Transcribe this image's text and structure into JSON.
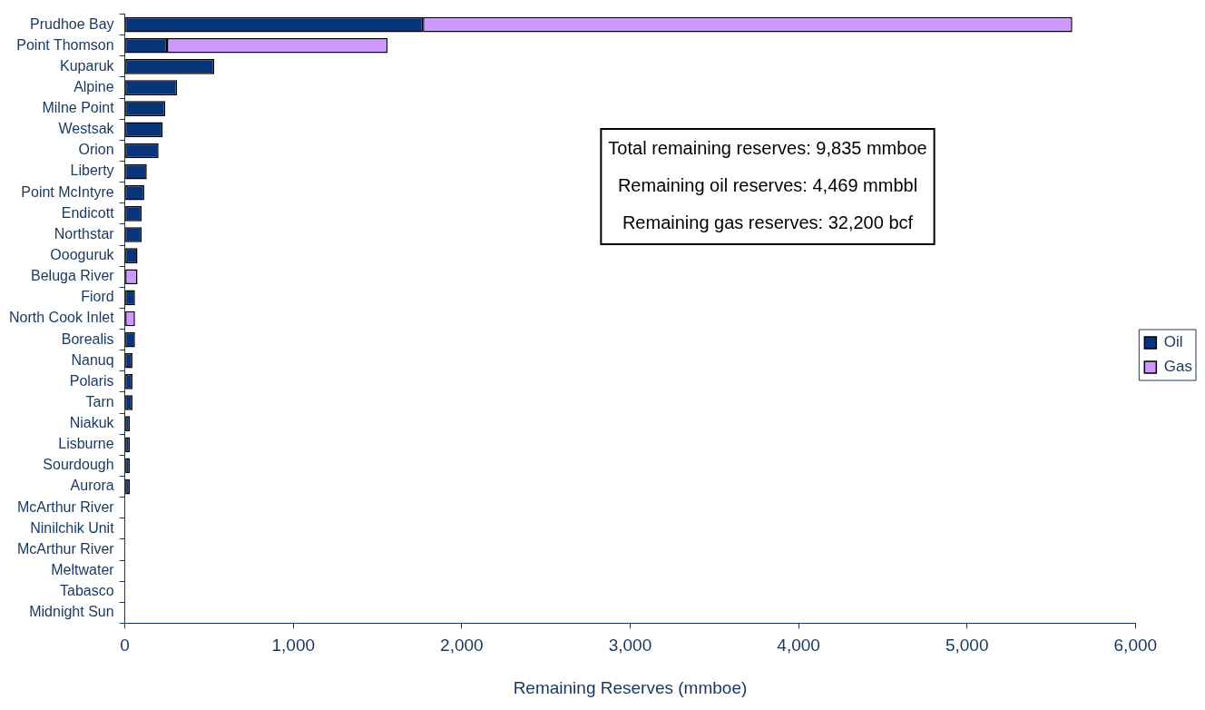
{
  "chart_data": {
    "type": "bar",
    "orientation": "horizontal",
    "stacked": true,
    "categories": [
      "Prudhoe Bay",
      "Point Thomson",
      "Kuparuk",
      "Alpine",
      "Milne Point",
      "Westsak",
      "Orion",
      "Liberty",
      "Point McIntyre",
      "Endicott",
      "Northstar",
      "Oooguruk",
      "Beluga River",
      "Fiord",
      "North Cook Inlet",
      "Borealis",
      "Nanuq",
      "Polaris",
      "Tarn",
      "Niakuk",
      "Lisburne",
      "Sourdough",
      "Aurora",
      "McArthur River",
      "Ninilchik Unit",
      "McArthur River",
      "Meltwater",
      "Tabasco",
      "Midnight Sun"
    ],
    "series": [
      {
        "name": "Oil",
        "color": "#08357a",
        "values": [
          1770,
          250,
          530,
          310,
          240,
          225,
          200,
          130,
          115,
          100,
          100,
          75,
          null,
          60,
          null,
          60,
          45,
          45,
          45,
          30,
          30,
          30,
          30,
          0,
          0,
          0,
          0,
          0,
          0
        ]
      },
      {
        "name": "Gas",
        "color": "#cc99ff",
        "values": [
          3855,
          1310,
          null,
          null,
          null,
          null,
          null,
          null,
          null,
          null,
          null,
          null,
          75,
          null,
          60,
          null,
          null,
          null,
          null,
          null,
          null,
          null,
          null,
          null,
          null,
          null,
          null,
          null,
          null
        ]
      }
    ],
    "xlabel": "Remaining Reserves (mmboe)",
    "xlim": [
      0,
      6000
    ],
    "xticks": [
      0,
      {
        "value": 1000,
        "label": "1,000"
      },
      {
        "value": 2000,
        "label": "2,000"
      },
      {
        "value": 3000,
        "label": "3,000"
      },
      {
        "value": 4000,
        "label": "4,000"
      },
      {
        "value": 5000,
        "label": "5,000"
      },
      {
        "value": 6000,
        "label": "6,000"
      }
    ],
    "grid": false,
    "legend": "right",
    "annotations": [
      "Total remaining reserves: 9,835 mmboe",
      "Remaining oil reserves: 4,469 mmbbl",
      "Remaining gas reserves: 32,200 bcf"
    ]
  }
}
